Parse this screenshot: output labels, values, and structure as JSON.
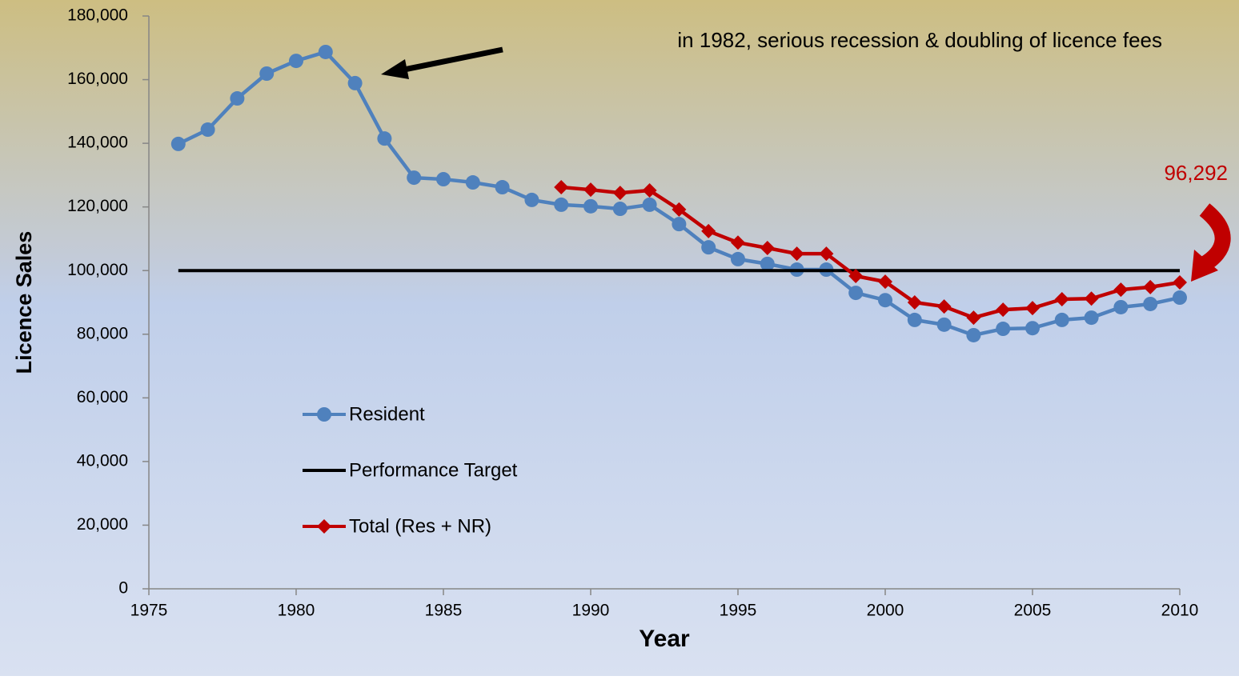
{
  "chart_data": {
    "type": "line",
    "xlabel": "Year",
    "ylabel": "Licence Sales",
    "xlim": [
      1975,
      2010
    ],
    "xticks": [
      1975,
      1980,
      1985,
      1990,
      1995,
      2000,
      2005,
      2010
    ],
    "ylim": [
      0,
      180000
    ],
    "yticks": [
      0,
      {
        "value": 20000,
        "label": "20,000"
      },
      {
        "value": 40000,
        "label": "40,000"
      },
      {
        "value": 60000,
        "label": "60,000"
      },
      {
        "value": 80000,
        "label": "80,000"
      },
      {
        "value": 100000,
        "label": "100,000"
      },
      {
        "value": 120000,
        "label": "120,000"
      },
      {
        "value": 140000,
        "label": "140,000"
      },
      {
        "value": 160000,
        "label": "160,000"
      },
      {
        "value": 180000,
        "label": "180,000"
      }
    ],
    "grid": false,
    "legend": "inside-left",
    "series": [
      {
        "name": "Resident",
        "color": "#4f81bd",
        "marker": "circle",
        "x": [
          1976,
          1977,
          1978,
          1979,
          1980,
          1981,
          1982,
          1983,
          1984,
          1985,
          1986,
          1987,
          1988,
          1989,
          1990,
          1991,
          1992,
          1993,
          1994,
          1995,
          1996,
          1997,
          1998,
          1999,
          2000,
          2001,
          2002,
          2003,
          2004,
          2005,
          2006,
          2007,
          2008,
          2009,
          2010
        ],
        "values": [
          139800,
          144300,
          154100,
          161900,
          165900,
          168700,
          158900,
          141500,
          129200,
          128700,
          127700,
          126200,
          122200,
          120700,
          120200,
          119400,
          120700,
          114600,
          107300,
          103600,
          102100,
          100300,
          100300,
          93000,
          90700,
          84500,
          83000,
          79700,
          81700,
          81900,
          84500,
          85200,
          88500,
          89500,
          91500
        ]
      },
      {
        "name": "Performance Target",
        "color": "#000000",
        "marker": "none",
        "x": [
          1976,
          2010
        ],
        "values": [
          100000,
          100000
        ]
      },
      {
        "name": "Total (Res + NR)",
        "color": "#c00000",
        "marker": "diamond",
        "x": [
          1989,
          1990,
          1991,
          1992,
          1993,
          1994,
          1995,
          1996,
          1997,
          1998,
          1999,
          2000,
          2001,
          2002,
          2003,
          2004,
          2005,
          2006,
          2007,
          2008,
          2009,
          2010
        ],
        "values": [
          126200,
          125400,
          124400,
          125200,
          119200,
          112400,
          108800,
          107100,
          105300,
          105300,
          98300,
          96500,
          90000,
          88700,
          85200,
          87700,
          88200,
          91000,
          91200,
          94000,
          94800,
          96292
        ]
      }
    ],
    "annotations": [
      {
        "text": "in 1982, serious recession & doubling of licence fees"
      },
      {
        "text": "96,292"
      }
    ]
  }
}
